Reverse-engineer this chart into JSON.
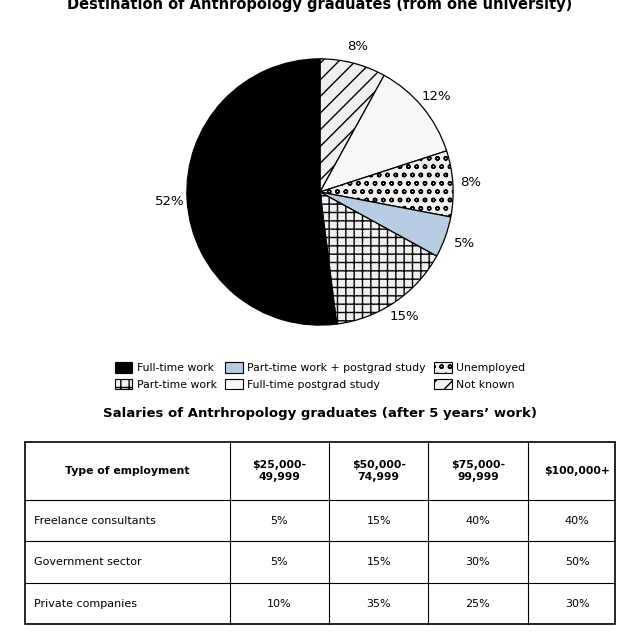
{
  "pie_title": "Destination of Anthropology graduates (from one university)",
  "table_title": "Salaries of Antrhropology graduates (after 5 years’ work)",
  "slices": [
    {
      "label": "Full-time work",
      "pct": "52%",
      "value": 52,
      "color": "#000000",
      "hatch": ""
    },
    {
      "label": "Part-time work",
      "pct": "15%",
      "value": 15,
      "color": "#ffffff",
      "hatch": "++"
    },
    {
      "label": "Part-time work + postgrad study",
      "pct": "5%",
      "value": 5,
      "color": "#b8cce4",
      "hatch": ""
    },
    {
      "label": "Unemployed",
      "pct": "8%",
      "value": 8,
      "color": "#ffffff",
      "hatch": "oo"
    },
    {
      "label": "Full-time postgrad study",
      "pct": "12%",
      "value": 12,
      "color": "#ffffff",
      "hatch": "~"
    },
    {
      "label": "Not known",
      "pct": "8%",
      "value": 8,
      "color": "#ffffff",
      "hatch": "//"
    }
  ],
  "col_headers": [
    "Type of employment",
    "$25,000-\n49,999",
    "$50,000-\n74,999",
    "$75,000-\n99,999",
    "$100,000+"
  ],
  "col_header_top": [
    "",
    "$25,000-",
    "$50,000-",
    "$75,000-",
    ""
  ],
  "col_header_bot": [
    "Type of employment",
    "49,999",
    "74,999",
    "99,999",
    "$100,000+"
  ],
  "rows": [
    [
      "Freelance consultants",
      "5%",
      "15%",
      "40%",
      "40%"
    ],
    [
      "Government sector",
      "5%",
      "15%",
      "30%",
      "50%"
    ],
    [
      "Private companies",
      "10%",
      "35%",
      "25%",
      "30%"
    ]
  ]
}
